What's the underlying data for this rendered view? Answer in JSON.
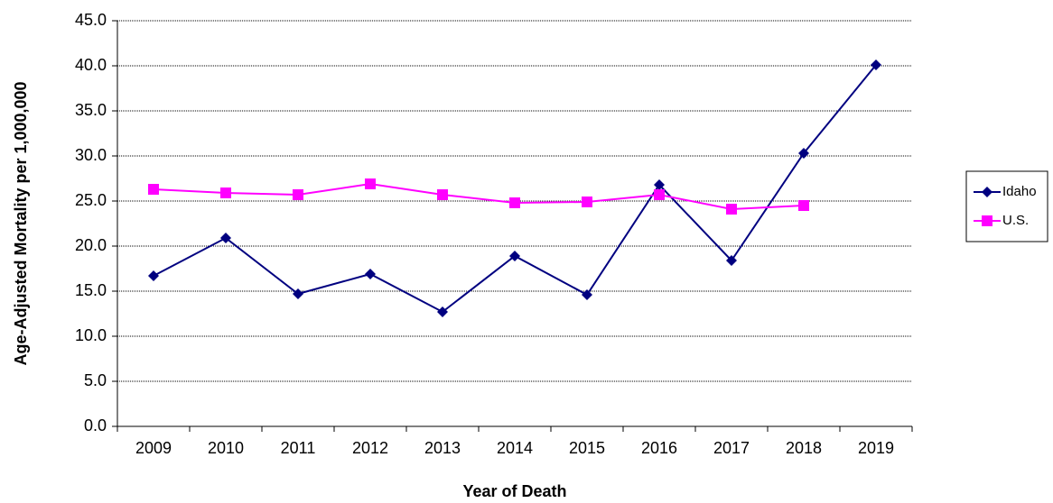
{
  "chart_data": {
    "type": "line",
    "y_label": "Age-Adjusted Mortality per 1,000,000",
    "x_label": "Year of Death",
    "categories": [
      "2009",
      "2010",
      "2011",
      "2012",
      "2013",
      "2014",
      "2015",
      "2016",
      "2017",
      "2018",
      "2019"
    ],
    "series": [
      {
        "name": "Idaho",
        "color": "#000080",
        "marker": "diamond",
        "values": [
          16.7,
          20.9,
          14.7,
          16.9,
          12.7,
          18.9,
          14.6,
          26.8,
          18.4,
          30.3,
          40.1
        ]
      },
      {
        "name": "U.S.",
        "color": "#ff00ff",
        "marker": "square",
        "values": [
          26.3,
          25.9,
          25.7,
          26.9,
          25.7,
          24.8,
          24.9,
          25.7,
          24.1,
          24.5,
          null
        ]
      }
    ],
    "ylim": [
      0,
      45
    ],
    "yticks": [
      {
        "value": 0,
        "label": "0.0"
      },
      {
        "value": 5,
        "label": "5.0"
      },
      {
        "value": 10,
        "label": "10.0"
      },
      {
        "value": 15,
        "label": "15.0"
      },
      {
        "value": 20,
        "label": "20.0"
      },
      {
        "value": 25,
        "label": "25.0"
      },
      {
        "value": 30,
        "label": "30.0"
      },
      {
        "value": 35,
        "label": "35.0"
      },
      {
        "value": 40,
        "label": "40.0"
      },
      {
        "value": 45,
        "label": "45.0"
      }
    ],
    "grid": true,
    "legend": "right"
  }
}
